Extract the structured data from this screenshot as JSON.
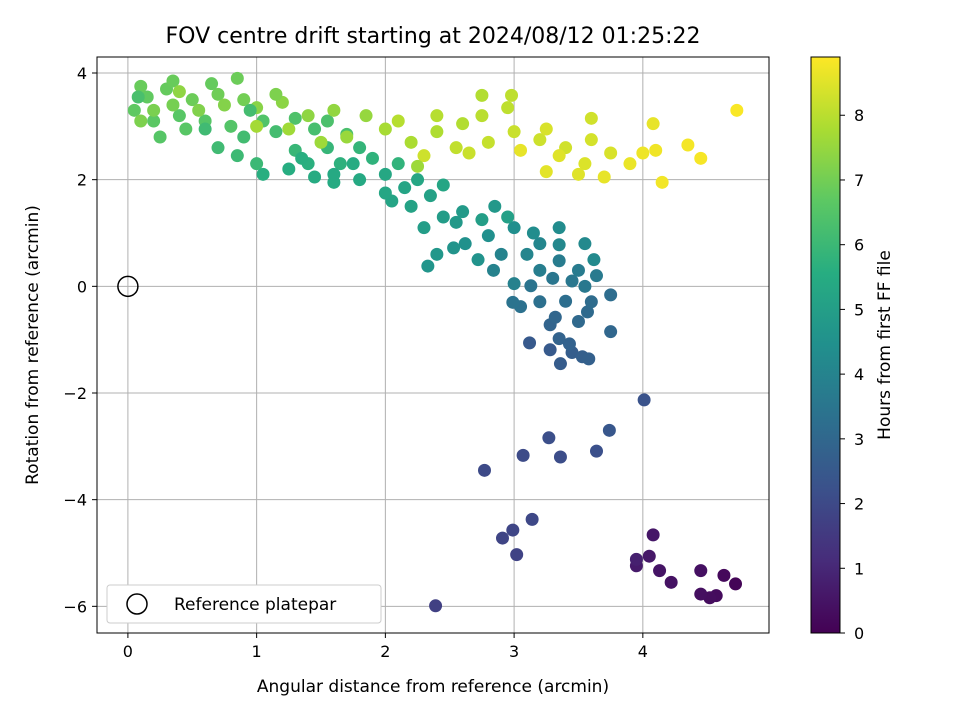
{
  "chart_data": {
    "type": "scatter",
    "title": "FOV centre drift starting at 2024/08/12 01:25:22",
    "xlabel": "Angular distance from reference (arcmin)",
    "ylabel": "Rotation from reference (arcmin)",
    "xlim": [
      -0.24,
      4.98
    ],
    "ylim": [
      -6.5,
      4.3
    ],
    "x_ticks": [
      0,
      1,
      2,
      3,
      4
    ],
    "y_ticks": [
      -6,
      -4,
      -2,
      0,
      2,
      4
    ],
    "grid": true,
    "colormap": "viridis",
    "colorbar": {
      "label": "Hours from first FF file",
      "range": [
        0,
        8.9
      ],
      "ticks": [
        0,
        1,
        2,
        3,
        4,
        5,
        6,
        7,
        8
      ]
    },
    "legend": {
      "placement": "lower-left",
      "entries": [
        {
          "label": "Reference platepar",
          "marker": "open-circle"
        }
      ]
    },
    "reference_point": {
      "x": 0,
      "y": 0
    },
    "points": [
      {
        "x": 4.72,
        "y": -5.58,
        "h": 0.1
      },
      {
        "x": 4.63,
        "y": -5.42,
        "h": 0.2
      },
      {
        "x": 4.57,
        "y": -5.8,
        "h": 0.25
      },
      {
        "x": 4.52,
        "y": -5.84,
        "h": 0.3
      },
      {
        "x": 4.45,
        "y": -5.77,
        "h": 0.35
      },
      {
        "x": 4.45,
        "y": -5.33,
        "h": 0.4
      },
      {
        "x": 4.22,
        "y": -5.55,
        "h": 0.45
      },
      {
        "x": 4.13,
        "y": -5.33,
        "h": 0.5
      },
      {
        "x": 4.08,
        "y": -4.66,
        "h": 0.55
      },
      {
        "x": 4.05,
        "y": -5.06,
        "h": 0.6
      },
      {
        "x": 3.95,
        "y": -5.24,
        "h": 0.65
      },
      {
        "x": 3.95,
        "y": -5.12,
        "h": 0.8
      },
      {
        "x": 2.39,
        "y": -5.99,
        "h": 1.7
      },
      {
        "x": 3.02,
        "y": -5.03,
        "h": 1.8
      },
      {
        "x": 2.91,
        "y": -4.72,
        "h": 1.85
      },
      {
        "x": 2.99,
        "y": -4.57,
        "h": 1.9
      },
      {
        "x": 3.14,
        "y": -4.37,
        "h": 1.95
      },
      {
        "x": 2.77,
        "y": -3.45,
        "h": 2.0
      },
      {
        "x": 3.07,
        "y": -3.17,
        "h": 2.05
      },
      {
        "x": 3.36,
        "y": -3.2,
        "h": 2.1
      },
      {
        "x": 3.27,
        "y": -2.84,
        "h": 2.15
      },
      {
        "x": 3.64,
        "y": -3.09,
        "h": 2.2
      },
      {
        "x": 4.01,
        "y": -2.13,
        "h": 2.3
      },
      {
        "x": 3.74,
        "y": -2.7,
        "h": 2.45
      },
      {
        "x": 3.12,
        "y": -1.06,
        "h": 2.5
      },
      {
        "x": 3.28,
        "y": -1.19,
        "h": 2.55
      },
      {
        "x": 3.36,
        "y": -1.45,
        "h": 2.6
      },
      {
        "x": 3.45,
        "y": -1.24,
        "h": 2.65
      },
      {
        "x": 3.53,
        "y": -1.32,
        "h": 2.7
      },
      {
        "x": 3.58,
        "y": -1.36,
        "h": 2.75
      },
      {
        "x": 3.43,
        "y": -1.08,
        "h": 2.8
      },
      {
        "x": 3.35,
        "y": -0.98,
        "h": 2.85
      },
      {
        "x": 3.28,
        "y": -0.72,
        "h": 2.9
      },
      {
        "x": 3.32,
        "y": -0.58,
        "h": 2.95
      },
      {
        "x": 3.75,
        "y": -0.85,
        "h": 3.0
      },
      {
        "x": 3.5,
        "y": -0.66,
        "h": 3.05
      },
      {
        "x": 3.57,
        "y": -0.48,
        "h": 3.1
      },
      {
        "x": 3.6,
        "y": -0.29,
        "h": 3.15
      },
      {
        "x": 3.75,
        "y": -0.16,
        "h": 3.2
      },
      {
        "x": 3.4,
        "y": -0.28,
        "h": 3.25
      },
      {
        "x": 3.2,
        "y": -0.29,
        "h": 3.3
      },
      {
        "x": 3.05,
        "y": -0.38,
        "h": 3.35
      },
      {
        "x": 2.99,
        "y": -0.3,
        "h": 3.4
      },
      {
        "x": 3.13,
        "y": 0.01,
        "h": 3.45
      },
      {
        "x": 3.3,
        "y": 0.15,
        "h": 3.5
      },
      {
        "x": 3.45,
        "y": 0.1,
        "h": 3.55
      },
      {
        "x": 3.55,
        "y": 0.0,
        "h": 3.6
      },
      {
        "x": 3.64,
        "y": 0.2,
        "h": 3.65
      },
      {
        "x": 3.5,
        "y": 0.3,
        "h": 3.7
      },
      {
        "x": 3.35,
        "y": 0.48,
        "h": 3.75
      },
      {
        "x": 3.2,
        "y": 0.3,
        "h": 3.8
      },
      {
        "x": 3.0,
        "y": 0.05,
        "h": 3.9
      },
      {
        "x": 2.84,
        "y": 0.3,
        "h": 3.95
      },
      {
        "x": 2.9,
        "y": 0.6,
        "h": 4.0
      },
      {
        "x": 3.1,
        "y": 0.6,
        "h": 4.05
      },
      {
        "x": 3.2,
        "y": 0.8,
        "h": 4.1
      },
      {
        "x": 3.35,
        "y": 0.78,
        "h": 4.15
      },
      {
        "x": 3.55,
        "y": 0.8,
        "h": 4.2
      },
      {
        "x": 3.62,
        "y": 0.5,
        "h": 4.25
      },
      {
        "x": 3.35,
        "y": 1.1,
        "h": 4.3
      },
      {
        "x": 3.15,
        "y": 1.0,
        "h": 4.35
      },
      {
        "x": 3.0,
        "y": 1.1,
        "h": 4.4
      },
      {
        "x": 2.8,
        "y": 0.95,
        "h": 4.45
      },
      {
        "x": 2.62,
        "y": 0.8,
        "h": 4.5
      },
      {
        "x": 2.72,
        "y": 0.5,
        "h": 4.55
      },
      {
        "x": 2.53,
        "y": 0.72,
        "h": 4.6
      },
      {
        "x": 2.33,
        "y": 0.38,
        "h": 4.65
      },
      {
        "x": 2.4,
        "y": 0.6,
        "h": 4.7
      },
      {
        "x": 2.85,
        "y": 1.5,
        "h": 4.75
      },
      {
        "x": 2.55,
        "y": 1.2,
        "h": 4.8
      },
      {
        "x": 2.6,
        "y": 1.4,
        "h": 4.85
      },
      {
        "x": 2.45,
        "y": 1.3,
        "h": 4.9
      },
      {
        "x": 2.3,
        "y": 1.1,
        "h": 4.95
      },
      {
        "x": 2.75,
        "y": 1.25,
        "h": 5.0
      },
      {
        "x": 2.95,
        "y": 1.3,
        "h": 5.05
      },
      {
        "x": 2.35,
        "y": 1.7,
        "h": 5.1
      },
      {
        "x": 2.2,
        "y": 1.5,
        "h": 5.15
      },
      {
        "x": 2.05,
        "y": 1.6,
        "h": 5.2
      },
      {
        "x": 2.45,
        "y": 1.9,
        "h": 5.25
      },
      {
        "x": 2.25,
        "y": 2.0,
        "h": 5.3
      },
      {
        "x": 2.0,
        "y": 2.1,
        "h": 5.35
      },
      {
        "x": 1.8,
        "y": 2.0,
        "h": 5.4
      },
      {
        "x": 1.6,
        "y": 1.95,
        "h": 5.45
      },
      {
        "x": 1.45,
        "y": 2.05,
        "h": 5.5
      },
      {
        "x": 1.25,
        "y": 2.2,
        "h": 5.55
      },
      {
        "x": 1.05,
        "y": 2.1,
        "h": 5.6
      },
      {
        "x": 1.4,
        "y": 2.3,
        "h": 5.65
      },
      {
        "x": 1.65,
        "y": 2.3,
        "h": 5.7
      },
      {
        "x": 1.9,
        "y": 2.4,
        "h": 5.75
      },
      {
        "x": 2.1,
        "y": 2.3,
        "h": 5.8
      },
      {
        "x": 1.8,
        "y": 2.6,
        "h": 5.85
      },
      {
        "x": 1.55,
        "y": 2.6,
        "h": 5.9
      },
      {
        "x": 1.3,
        "y": 2.55,
        "h": 5.95
      },
      {
        "x": 1.0,
        "y": 2.3,
        "h": 6.0
      },
      {
        "x": 0.85,
        "y": 2.45,
        "h": 6.05
      },
      {
        "x": 0.7,
        "y": 2.6,
        "h": 6.1
      },
      {
        "x": 0.9,
        "y": 2.8,
        "h": 6.15
      },
      {
        "x": 1.15,
        "y": 2.9,
        "h": 6.2
      },
      {
        "x": 1.45,
        "y": 2.95,
        "h": 6.25
      },
      {
        "x": 1.7,
        "y": 2.85,
        "h": 6.3
      },
      {
        "x": 1.55,
        "y": 3.1,
        "h": 6.35
      },
      {
        "x": 1.3,
        "y": 3.15,
        "h": 6.4
      },
      {
        "x": 1.05,
        "y": 3.1,
        "h": 6.45
      },
      {
        "x": 0.8,
        "y": 3.0,
        "h": 6.5
      },
      {
        "x": 0.6,
        "y": 3.1,
        "h": 6.55
      },
      {
        "x": 0.4,
        "y": 3.2,
        "h": 6.6
      },
      {
        "x": 0.2,
        "y": 3.1,
        "h": 6.65
      },
      {
        "x": 0.05,
        "y": 3.3,
        "h": 6.7
      },
      {
        "x": 0.15,
        "y": 3.55,
        "h": 6.75
      },
      {
        "x": 0.3,
        "y": 3.7,
        "h": 6.8
      },
      {
        "x": 0.1,
        "y": 3.75,
        "h": 6.85
      },
      {
        "x": 0.5,
        "y": 3.5,
        "h": 6.9
      },
      {
        "x": 0.7,
        "y": 3.6,
        "h": 6.95
      },
      {
        "x": 0.9,
        "y": 3.5,
        "h": 7.0
      },
      {
        "x": 0.35,
        "y": 3.4,
        "h": 7.05
      },
      {
        "x": 0.2,
        "y": 3.3,
        "h": 7.1
      },
      {
        "x": 0.1,
        "y": 3.1,
        "h": 7.15
      },
      {
        "x": 0.55,
        "y": 3.3,
        "h": 7.2
      },
      {
        "x": 0.75,
        "y": 3.4,
        "h": 7.25
      },
      {
        "x": 1.0,
        "y": 3.35,
        "h": 7.3
      },
      {
        "x": 1.2,
        "y": 3.45,
        "h": 7.35
      },
      {
        "x": 1.4,
        "y": 3.2,
        "h": 7.4
      },
      {
        "x": 1.6,
        "y": 3.3,
        "h": 7.45
      },
      {
        "x": 1.85,
        "y": 3.2,
        "h": 7.5
      },
      {
        "x": 1.7,
        "y": 2.8,
        "h": 7.55
      },
      {
        "x": 1.5,
        "y": 2.7,
        "h": 7.6
      },
      {
        "x": 1.25,
        "y": 2.95,
        "h": 7.65
      },
      {
        "x": 1.0,
        "y": 3.0,
        "h": 7.7
      },
      {
        "x": 2.0,
        "y": 2.95,
        "h": 7.75
      },
      {
        "x": 2.2,
        "y": 2.7,
        "h": 7.8
      },
      {
        "x": 2.4,
        "y": 2.9,
        "h": 7.85
      },
      {
        "x": 2.6,
        "y": 3.05,
        "h": 7.9
      },
      {
        "x": 2.1,
        "y": 3.1,
        "h": 7.95
      },
      {
        "x": 2.75,
        "y": 3.2,
        "h": 8.0
      },
      {
        "x": 2.95,
        "y": 3.35,
        "h": 8.05
      },
      {
        "x": 2.55,
        "y": 2.6,
        "h": 8.1
      },
      {
        "x": 2.8,
        "y": 2.7,
        "h": 8.15
      },
      {
        "x": 3.0,
        "y": 2.9,
        "h": 8.2
      },
      {
        "x": 3.2,
        "y": 2.75,
        "h": 8.25
      },
      {
        "x": 3.4,
        "y": 2.6,
        "h": 8.3
      },
      {
        "x": 3.6,
        "y": 2.75,
        "h": 8.35
      },
      {
        "x": 3.75,
        "y": 2.5,
        "h": 8.4
      },
      {
        "x": 3.55,
        "y": 2.3,
        "h": 8.45
      },
      {
        "x": 3.35,
        "y": 2.45,
        "h": 8.5
      },
      {
        "x": 3.25,
        "y": 2.15,
        "h": 8.55
      },
      {
        "x": 3.05,
        "y": 2.55,
        "h": 8.6
      },
      {
        "x": 3.9,
        "y": 2.3,
        "h": 8.65
      },
      {
        "x": 4.0,
        "y": 2.5,
        "h": 8.7
      },
      {
        "x": 4.1,
        "y": 2.55,
        "h": 8.72
      },
      {
        "x": 4.15,
        "y": 1.95,
        "h": 8.75
      },
      {
        "x": 4.35,
        "y": 2.65,
        "h": 8.78
      },
      {
        "x": 4.45,
        "y": 2.4,
        "h": 8.8
      },
      {
        "x": 4.73,
        "y": 3.3,
        "h": 8.85
      },
      {
        "x": 4.08,
        "y": 3.05,
        "h": 8.6
      },
      {
        "x": 2.98,
        "y": 3.58,
        "h": 8.05
      },
      {
        "x": 3.6,
        "y": 3.15,
        "h": 8.3
      },
      {
        "x": 3.25,
        "y": 2.95,
        "h": 8.4
      },
      {
        "x": 3.5,
        "y": 2.1,
        "h": 8.5
      },
      {
        "x": 3.7,
        "y": 2.05,
        "h": 8.6
      },
      {
        "x": 2.75,
        "y": 3.58,
        "h": 7.9
      },
      {
        "x": 2.4,
        "y": 3.2,
        "h": 7.95
      },
      {
        "x": 2.65,
        "y": 2.5,
        "h": 8.2
      },
      {
        "x": 2.3,
        "y": 2.45,
        "h": 8.25
      },
      {
        "x": 0.65,
        "y": 3.8,
        "h": 6.8
      },
      {
        "x": 0.35,
        "y": 3.85,
        "h": 6.85
      },
      {
        "x": 0.85,
        "y": 3.9,
        "h": 6.9
      },
      {
        "x": 0.45,
        "y": 2.95,
        "h": 6.6
      },
      {
        "x": 0.25,
        "y": 2.8,
        "h": 6.55
      },
      {
        "x": 0.95,
        "y": 3.3,
        "h": 6.2
      },
      {
        "x": 1.15,
        "y": 3.6,
        "h": 7.15
      },
      {
        "x": 0.6,
        "y": 2.95,
        "h": 6.1
      },
      {
        "x": 0.4,
        "y": 3.65,
        "h": 7.4
      },
      {
        "x": 0.08,
        "y": 3.55,
        "h": 6.3
      },
      {
        "x": 1.35,
        "y": 2.4,
        "h": 5.6
      },
      {
        "x": 1.6,
        "y": 2.1,
        "h": 5.4
      },
      {
        "x": 1.75,
        "y": 2.3,
        "h": 5.5
      },
      {
        "x": 2.15,
        "y": 1.85,
        "h": 5.2
      },
      {
        "x": 2.0,
        "y": 1.75,
        "h": 5.3
      },
      {
        "x": 2.25,
        "y": 2.25,
        "h": 7.6
      }
    ]
  }
}
